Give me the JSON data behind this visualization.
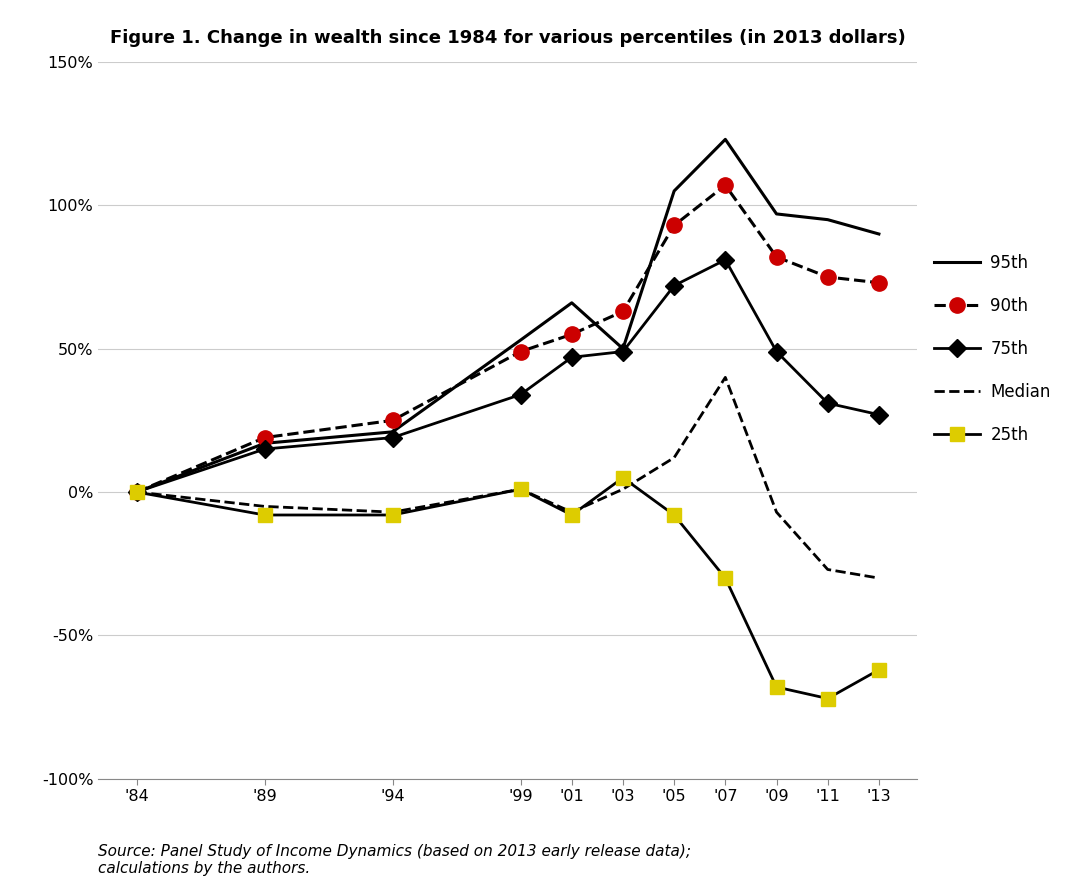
{
  "title": "Figure 1. Change in wealth since 1984 for various percentiles (in 2013 dollars)",
  "source_text": "Source: Panel Study of Income Dynamics (based on 2013 early release data);\ncalculations by the authors.",
  "x_labels": [
    "'84",
    "'89",
    "'94",
    "'99",
    "'01",
    "'03",
    "'05",
    "'07",
    "'09",
    "'11",
    "'13"
  ],
  "x_values": [
    1984,
    1989,
    1994,
    1999,
    2001,
    2003,
    2005,
    2007,
    2009,
    2011,
    2013
  ],
  "series": {
    "95th": {
      "values": [
        0.0,
        0.17,
        0.21,
        0.53,
        0.66,
        0.5,
        1.05,
        1.23,
        0.97,
        0.95,
        0.9
      ],
      "color": "#000000",
      "linestyle": "solid",
      "linewidth": 2.2,
      "marker": null,
      "markersize": 0,
      "label": "95th"
    },
    "90th": {
      "values": [
        0.0,
        0.19,
        0.25,
        0.49,
        0.55,
        0.63,
        0.93,
        1.07,
        0.82,
        0.75,
        0.73
      ],
      "color": "#000000",
      "linestyle": "dashed",
      "linewidth": 2.2,
      "marker": "o",
      "markersize": 11,
      "markerfacecolor": "#cc0000",
      "markeredgecolor": "#cc0000",
      "label": "90th"
    },
    "75th": {
      "values": [
        0.0,
        0.15,
        0.19,
        0.34,
        0.47,
        0.49,
        0.72,
        0.81,
        0.49,
        0.31,
        0.27
      ],
      "color": "#000000",
      "linestyle": "solid",
      "linewidth": 2.0,
      "marker": "D",
      "markersize": 9,
      "markerfacecolor": "#000000",
      "markeredgecolor": "#000000",
      "label": "75th"
    },
    "Median": {
      "values": [
        0.0,
        -0.05,
        -0.07,
        0.01,
        -0.07,
        0.01,
        0.12,
        0.4,
        -0.07,
        -0.27,
        -0.3
      ],
      "color": "#000000",
      "linestyle": "dashed",
      "linewidth": 2.0,
      "marker": null,
      "markersize": 0,
      "label": "Median"
    },
    "25th": {
      "values": [
        0.0,
        -0.08,
        -0.08,
        0.01,
        -0.08,
        0.05,
        -0.08,
        -0.3,
        -0.68,
        -0.72,
        -0.62
      ],
      "color": "#000000",
      "linestyle": "solid",
      "linewidth": 2.0,
      "marker": "s",
      "markersize": 10,
      "markerfacecolor": "#ddcc00",
      "markeredgecolor": "#ddcc00",
      "label": "25th"
    }
  },
  "series_order": [
    "95th",
    "90th",
    "75th",
    "Median",
    "25th"
  ],
  "ylim": [
    -1.0,
    1.5
  ],
  "yticks": [
    -1.0,
    -0.5,
    0.0,
    0.5,
    1.0,
    1.5
  ],
  "ytick_labels": [
    "-100%",
    "-50%",
    "0%",
    "50%",
    "100%",
    "150%"
  ],
  "background_color": "#ffffff",
  "grid_color": "#cccccc",
  "title_fontsize": 13,
  "tick_fontsize": 11.5,
  "legend_fontsize": 12,
  "source_fontsize": 11
}
